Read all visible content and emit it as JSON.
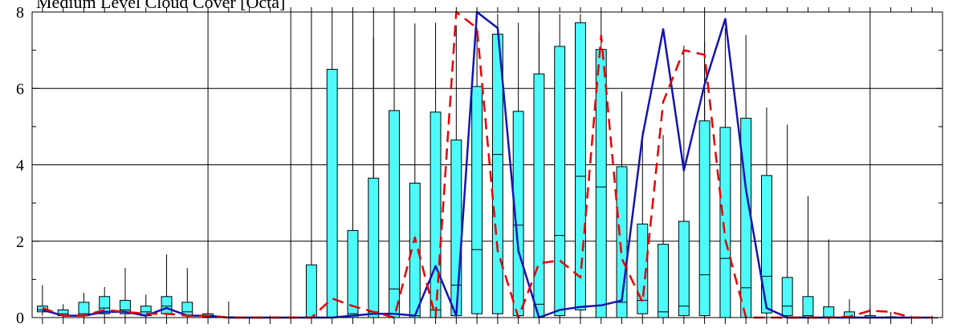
{
  "chart_data": {
    "type": "box",
    "title": "Medium Level Cloud Cover [Octa]",
    "xlabel": "",
    "ylabel": "",
    "ylim": [
      0,
      8
    ],
    "yticks": [
      0,
      2,
      4,
      6,
      8
    ],
    "ytick_labels": [
      "0",
      "2",
      "4",
      "6",
      "8"
    ],
    "grid": true,
    "colors": {
      "box_fill": "#4dfafa",
      "box_edge": "#000000",
      "series_solid": "#1414b4",
      "series_dashed": "#e60000",
      "grid": "#000000",
      "background": "#ffffff"
    },
    "boxes": [
      {
        "x": 0,
        "whisker_low": 0.05,
        "q1": 0.15,
        "median": 0.2,
        "q3": 0.3,
        "whisker_high": 0.85
      },
      {
        "x": 1,
        "whisker_low": 0.0,
        "q1": 0.05,
        "median": 0.1,
        "q3": 0.2,
        "whisker_high": 0.35
      },
      {
        "x": 2,
        "whisker_low": 0.0,
        "q1": 0.05,
        "median": 0.1,
        "q3": 0.4,
        "whisker_high": 0.65
      },
      {
        "x": 3,
        "whisker_low": 0.0,
        "q1": 0.1,
        "median": 0.25,
        "q3": 0.55,
        "whisker_high": 0.8
      },
      {
        "x": 4,
        "whisker_low": 0.0,
        "q1": 0.1,
        "median": 0.2,
        "q3": 0.45,
        "whisker_high": 1.3
      },
      {
        "x": 5,
        "whisker_low": 0.0,
        "q1": 0.05,
        "median": 0.15,
        "q3": 0.3,
        "whisker_high": 0.6
      },
      {
        "x": 6,
        "whisker_low": 0.0,
        "q1": 0.1,
        "median": 0.3,
        "q3": 0.55,
        "whisker_high": 1.65
      },
      {
        "x": 7,
        "whisker_low": 0.0,
        "q1": 0.05,
        "median": 0.15,
        "q3": 0.4,
        "whisker_high": 1.3
      },
      {
        "x": 8,
        "whisker_low": 0.0,
        "q1": 0.02,
        "median": 0.05,
        "q3": 0.1,
        "whisker_high": 0.25
      },
      {
        "x": 9,
        "whisker_low": 0.0,
        "q1": 0.0,
        "median": 0.0,
        "q3": 0.02,
        "whisker_high": 0.42
      },
      {
        "x": 10,
        "whisker_low": 0.0,
        "q1": 0.0,
        "median": 0.0,
        "q3": 0.0,
        "whisker_high": 0.0
      },
      {
        "x": 11,
        "whisker_low": 0.0,
        "q1": 0.0,
        "median": 0.0,
        "q3": 0.0,
        "whisker_high": 0.05
      },
      {
        "x": 12,
        "whisker_low": 0.0,
        "q1": 0.0,
        "median": 0.0,
        "q3": 0.0,
        "whisker_high": 8.0
      },
      {
        "x": 13,
        "whisker_low": 0.0,
        "q1": 0.0,
        "median": 0.0,
        "q3": 1.38,
        "whisker_high": 8.0
      },
      {
        "x": 14,
        "whisker_low": 0.0,
        "q1": 0.0,
        "median": 0.0,
        "q3": 6.5,
        "whisker_high": 8.0
      },
      {
        "x": 15,
        "whisker_low": 0.0,
        "q1": 0.0,
        "median": 0.1,
        "q3": 2.28,
        "whisker_high": 8.0
      },
      {
        "x": 16,
        "whisker_low": 0.0,
        "q1": 0.0,
        "median": 0.15,
        "q3": 3.65,
        "whisker_high": 7.33
      },
      {
        "x": 17,
        "whisker_low": 0.0,
        "q1": 0.0,
        "median": 0.75,
        "q3": 5.42,
        "whisker_high": 8.0
      },
      {
        "x": 18,
        "whisker_low": 0.0,
        "q1": 0.0,
        "median": 0.05,
        "q3": 3.52,
        "whisker_high": 7.7
      },
      {
        "x": 19,
        "whisker_low": 0.0,
        "q1": 0.0,
        "median": 0.2,
        "q3": 5.38,
        "whisker_high": 7.72
      },
      {
        "x": 20,
        "whisker_low": 0.0,
        "q1": 0.05,
        "median": 0.85,
        "q3": 4.65,
        "whisker_high": 7.65
      },
      {
        "x": 21,
        "whisker_low": 0.0,
        "q1": 0.1,
        "median": 1.78,
        "q3": 6.05,
        "whisker_high": 7.58
      },
      {
        "x": 22,
        "whisker_low": 0.0,
        "q1": 0.1,
        "median": 4.27,
        "q3": 7.42,
        "whisker_high": 7.95
      },
      {
        "x": 23,
        "whisker_low": 0.0,
        "q1": 0.05,
        "median": 2.42,
        "q3": 5.4,
        "whisker_high": 7.72
      },
      {
        "x": 24,
        "whisker_low": 0.0,
        "q1": 0.0,
        "median": 0.35,
        "q3": 6.38,
        "whisker_high": 7.47
      },
      {
        "x": 25,
        "whisker_low": 0.0,
        "q1": 0.05,
        "median": 2.15,
        "q3": 7.1,
        "whisker_high": 7.95
      },
      {
        "x": 26,
        "whisker_low": 0.0,
        "q1": 0.2,
        "median": 3.7,
        "q3": 7.72,
        "whisker_high": 7.95
      },
      {
        "x": 27,
        "whisker_low": 0.0,
        "q1": 0.0,
        "median": 3.42,
        "q3": 7.02,
        "whisker_high": 8.0
      },
      {
        "x": 28,
        "whisker_low": 0.0,
        "q1": 0.0,
        "median": 0.4,
        "q3": 3.95,
        "whisker_high": 5.92
      },
      {
        "x": 29,
        "whisker_low": 0.0,
        "q1": 0.1,
        "median": 0.45,
        "q3": 2.45,
        "whisker_high": 4.88
      },
      {
        "x": 30,
        "whisker_low": 0.0,
        "q1": 0.0,
        "median": 0.15,
        "q3": 1.92,
        "whisker_high": 4.78
      },
      {
        "x": 31,
        "whisker_low": 0.0,
        "q1": 0.05,
        "median": 0.3,
        "q3": 2.52,
        "whisker_high": 7.12
      },
      {
        "x": 32,
        "whisker_low": 0.0,
        "q1": 0.05,
        "median": 1.12,
        "q3": 5.15,
        "whisker_high": 7.22
      },
      {
        "x": 33,
        "whisker_low": 0.0,
        "q1": 0.0,
        "median": 1.55,
        "q3": 4.98,
        "whisker_high": 7.58
      },
      {
        "x": 34,
        "whisker_low": 0.0,
        "q1": 0.0,
        "median": 0.78,
        "q3": 5.22,
        "whisker_high": 7.4
      },
      {
        "x": 35,
        "whisker_low": 0.0,
        "q1": 0.12,
        "median": 1.08,
        "q3": 3.72,
        "whisker_high": 5.5
      },
      {
        "x": 36,
        "whisker_low": 0.0,
        "q1": 0.05,
        "median": 0.3,
        "q3": 1.05,
        "whisker_high": 5.05
      },
      {
        "x": 37,
        "whisker_low": 0.0,
        "q1": 0.0,
        "median": 0.05,
        "q3": 0.55,
        "whisker_high": 3.18
      },
      {
        "x": 38,
        "whisker_low": 0.0,
        "q1": 0.0,
        "median": 0.02,
        "q3": 0.28,
        "whisker_high": 2.05
      },
      {
        "x": 39,
        "whisker_low": 0.0,
        "q1": 0.0,
        "median": 0.0,
        "q3": 0.15,
        "whisker_high": 0.48
      },
      {
        "x": 40,
        "whisker_low": 0.0,
        "q1": 0.0,
        "median": 0.0,
        "q3": 0.05,
        "whisker_high": 0.25
      },
      {
        "x": 41,
        "whisker_low": 0.0,
        "q1": 0.0,
        "median": 0.0,
        "q3": 0.02,
        "whisker_high": 0.15
      },
      {
        "x": 42,
        "whisker_low": 0.0,
        "q1": 0.0,
        "median": 0.0,
        "q3": 0.0,
        "whisker_high": 0.05
      },
      {
        "x": 43,
        "whisker_low": 0.0,
        "q1": 0.0,
        "median": 0.0,
        "q3": 0.0,
        "whisker_high": 0.05
      }
    ],
    "series": [
      {
        "style": "solid",
        "x": [
          0,
          1,
          2,
          3,
          4,
          5,
          6,
          7,
          8,
          9,
          10,
          11,
          12,
          13,
          14,
          15,
          16,
          17,
          18,
          19,
          20,
          21,
          22,
          23,
          24,
          25,
          26,
          27,
          28,
          29,
          30,
          31,
          32,
          33,
          34,
          35,
          36,
          37,
          38,
          39,
          40,
          41,
          42,
          43
        ],
        "values": [
          0.2,
          0.05,
          0.05,
          0.15,
          0.15,
          0.05,
          0.25,
          0.05,
          0.05,
          0.0,
          0.0,
          0.0,
          0.0,
          0.0,
          0.0,
          0.05,
          0.1,
          0.1,
          0.05,
          1.35,
          0.05,
          8.0,
          7.58,
          1.75,
          0.0,
          0.2,
          0.28,
          0.32,
          0.45,
          4.75,
          7.55,
          3.85,
          6.1,
          7.82,
          3.35,
          0.25,
          0.0,
          0.0,
          0.0,
          0.0,
          0.0,
          0.0,
          0.0,
          0.0
        ]
      },
      {
        "style": "dashed",
        "x": [
          0,
          1,
          2,
          3,
          4,
          5,
          6,
          7,
          8,
          9,
          10,
          11,
          12,
          13,
          14,
          15,
          16,
          17,
          18,
          19,
          20,
          21,
          22,
          23,
          24,
          25,
          26,
          27,
          28,
          29,
          30,
          31,
          32,
          33,
          34,
          35,
          36,
          37,
          38,
          39,
          40,
          41,
          42,
          43
        ],
        "values": [
          0.25,
          0.05,
          0.05,
          0.2,
          0.15,
          0.1,
          0.1,
          0.05,
          0.05,
          0.0,
          0.0,
          0.0,
          0.0,
          0.0,
          0.5,
          0.3,
          0.15,
          0.0,
          2.1,
          0.0,
          8.0,
          7.58,
          1.75,
          0.0,
          1.42,
          1.5,
          1.05,
          7.38,
          1.55,
          0.4,
          5.65,
          7.0,
          6.88,
          2.05,
          0.0,
          0.0,
          0.0,
          0.0,
          0.0,
          0.02,
          0.18,
          0.15,
          0.0,
          0.0
        ]
      }
    ]
  }
}
